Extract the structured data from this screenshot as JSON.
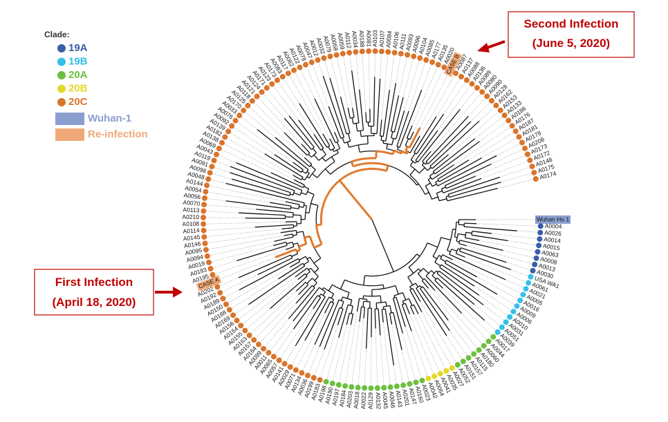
{
  "legend": {
    "title": "Clade:",
    "items": [
      {
        "label": "19A",
        "color": "#3a5da8",
        "shape": "dot"
      },
      {
        "label": "19B",
        "color": "#33c0ea",
        "shape": "dot"
      },
      {
        "label": "20A",
        "color": "#6cbf3f",
        "shape": "dot"
      },
      {
        "label": "20B",
        "color": "#e4d82a",
        "shape": "dot"
      },
      {
        "label": "20C",
        "color": "#d9742b",
        "shape": "dot"
      },
      {
        "label": "Wuhan-1",
        "color": "#8a9ed0",
        "shape": "box"
      },
      {
        "label": "Re-infection",
        "color": "#f0a878",
        "shape": "box"
      }
    ]
  },
  "callouts": [
    {
      "title": "Second Infection",
      "date": "(June 5, 2020)"
    },
    {
      "title": "First Infection",
      "date": "(April 18, 2020)"
    }
  ],
  "leaves": [
    {
      "label": "Wuhan Hu 1",
      "clade": "Wuhan-1"
    },
    {
      "label": "A0004",
      "clade": "19A"
    },
    {
      "label": "A0026",
      "clade": "19A"
    },
    {
      "label": "A0014",
      "clade": "19A"
    },
    {
      "label": "A0015",
      "clade": "19A"
    },
    {
      "label": "A0063",
      "clade": "19A"
    },
    {
      "label": "A0008",
      "clade": "19A"
    },
    {
      "label": "A0013",
      "clade": "19A"
    },
    {
      "label": "A0030",
      "clade": "19A"
    },
    {
      "label": "USA WA1",
      "clade": "19B"
    },
    {
      "label": "A0061",
      "clade": "19B"
    },
    {
      "label": "A0021",
      "clade": "19B"
    },
    {
      "label": "A0005",
      "clade": "19B"
    },
    {
      "label": "A0016",
      "clade": "19B"
    },
    {
      "label": "A0009",
      "clade": "19B"
    },
    {
      "label": "A0006",
      "clade": "19B"
    },
    {
      "label": "A0010",
      "clade": "19B"
    },
    {
      "label": "A0031",
      "clade": "19B"
    },
    {
      "label": "A0051",
      "clade": "19B"
    },
    {
      "label": "A0039",
      "clade": "19B"
    },
    {
      "label": "A0017",
      "clade": "20A"
    },
    {
      "label": "A0044",
      "clade": "20A"
    },
    {
      "label": "A0060",
      "clade": "20A"
    },
    {
      "label": "A0180",
      "clade": "20A"
    },
    {
      "label": "A0115",
      "clade": "20A"
    },
    {
      "label": "A0157",
      "clade": "20A"
    },
    {
      "label": "A0151",
      "clade": "20A"
    },
    {
      "label": "A0052",
      "clade": "20A"
    },
    {
      "label": "A0027",
      "clade": "20B"
    },
    {
      "label": "A0035",
      "clade": "20B"
    },
    {
      "label": "A0041",
      "clade": "20B"
    },
    {
      "label": "A0064",
      "clade": "20B"
    },
    {
      "label": "A0042",
      "clade": "20B"
    },
    {
      "label": "A0023",
      "clade": "20A"
    },
    {
      "label": "A0160",
      "clade": "20A"
    },
    {
      "label": "A0147",
      "clade": "20A"
    },
    {
      "label": "A0201",
      "clade": "20A"
    },
    {
      "label": "A0143",
      "clade": "20A"
    },
    {
      "label": "A0046",
      "clade": "20A"
    },
    {
      "label": "A0045",
      "clade": "20A"
    },
    {
      "label": "A0132",
      "clade": "20A"
    },
    {
      "label": "A0129",
      "clade": "20A"
    },
    {
      "label": "A0022",
      "clade": "20A"
    },
    {
      "label": "A0018",
      "clade": "20A"
    },
    {
      "label": "A0203",
      "clade": "20A"
    },
    {
      "label": "A0184",
      "clade": "20A"
    },
    {
      "label": "A0197",
      "clade": "20A"
    },
    {
      "label": "A0190",
      "clade": "20A"
    },
    {
      "label": "A0198",
      "clade": "20A"
    },
    {
      "label": "A0183",
      "clade": "20C"
    },
    {
      "label": "A0199",
      "clade": "20C"
    },
    {
      "label": "A0036",
      "clade": "20C"
    },
    {
      "label": "A0134",
      "clade": "20C"
    },
    {
      "label": "A0071",
      "clade": "20C"
    },
    {
      "label": "A0029",
      "clade": "20C"
    },
    {
      "label": "A0141",
      "clade": "20C"
    },
    {
      "label": "A0057",
      "clade": "20C"
    },
    {
      "label": "A0065",
      "clade": "20C"
    },
    {
      "label": "A0011",
      "clade": "20C"
    },
    {
      "label": "A0099",
      "clade": "20C"
    },
    {
      "label": "A0164",
      "clade": "20C"
    },
    {
      "label": "A0157",
      "clade": "20C"
    },
    {
      "label": "A0163",
      "clade": "20C"
    },
    {
      "label": "A0155",
      "clade": "20C"
    },
    {
      "label": "A0154",
      "clade": "20C"
    },
    {
      "label": "A0156",
      "clade": "20C"
    },
    {
      "label": "A0169",
      "clade": "20C"
    },
    {
      "label": "A0188",
      "clade": "20C"
    },
    {
      "label": "A0150",
      "clade": "20C"
    },
    {
      "label": "A0189",
      "clade": "20C"
    },
    {
      "label": "A0192",
      "clade": "20C"
    },
    {
      "label": "A0202",
      "clade": "20C"
    },
    {
      "label": "CASE A",
      "clade": "Re-infection"
    },
    {
      "label": "A0195",
      "clade": "20C"
    },
    {
      "label": "A0193",
      "clade": "20C"
    },
    {
      "label": "A0019",
      "clade": "20C"
    },
    {
      "label": "A0094",
      "clade": "20C"
    },
    {
      "label": "A0095",
      "clade": "20C"
    },
    {
      "label": "A0146",
      "clade": "20C"
    },
    {
      "label": "A0145",
      "clade": "20C"
    },
    {
      "label": "A0114",
      "clade": "20C"
    },
    {
      "label": "A0108",
      "clade": "20C"
    },
    {
      "label": "A0210",
      "clade": "20C"
    },
    {
      "label": "A0113",
      "clade": "20C"
    },
    {
      "label": "A0070",
      "clade": "20C"
    },
    {
      "label": "A0056",
      "clade": "20C"
    },
    {
      "label": "A0054",
      "clade": "20C"
    },
    {
      "label": "A0144",
      "clade": "20C"
    },
    {
      "label": "A0048",
      "clade": "20C"
    },
    {
      "label": "A0098",
      "clade": "20C"
    },
    {
      "label": "A0091",
      "clade": "20C"
    },
    {
      "label": "A0119",
      "clade": "20C"
    },
    {
      "label": "A0043",
      "clade": "20C"
    },
    {
      "label": "A0069",
      "clade": "20C"
    },
    {
      "label": "A0138",
      "clade": "20C"
    },
    {
      "label": "A0182",
      "clade": "20C"
    },
    {
      "label": "A0139",
      "clade": "20C"
    },
    {
      "label": "A0092",
      "clade": "20C"
    },
    {
      "label": "A0076",
      "clade": "20C"
    },
    {
      "label": "A0033",
      "clade": "20C"
    },
    {
      "label": "A0170",
      "clade": "20C"
    },
    {
      "label": "A0125",
      "clade": "20C"
    },
    {
      "label": "A0118",
      "clade": "20C"
    },
    {
      "label": "A0121",
      "clade": "20C"
    },
    {
      "label": "A0124",
      "clade": "20C"
    },
    {
      "label": "A0171",
      "clade": "20C"
    },
    {
      "label": "A0123",
      "clade": "20C"
    },
    {
      "label": "A0173",
      "clade": "20C"
    },
    {
      "label": "A0083",
      "clade": "20C"
    },
    {
      "label": "A0117",
      "clade": "20C"
    },
    {
      "label": "A0062",
      "clade": "20C"
    },
    {
      "label": "A0122",
      "clade": "20C"
    },
    {
      "label": "A0078",
      "clade": "20C"
    },
    {
      "label": "A0047",
      "clade": "20C"
    },
    {
      "label": "A0012",
      "clade": "20C"
    },
    {
      "label": "A0032",
      "clade": "20C"
    },
    {
      "label": "A0079",
      "clade": "20C"
    },
    {
      "label": "A0058",
      "clade": "20C"
    },
    {
      "label": "A0059",
      "clade": "20C"
    },
    {
      "label": "A0112",
      "clade": "20C"
    },
    {
      "label": "A0034",
      "clade": "20C"
    },
    {
      "label": "A0188",
      "clade": "20C"
    },
    {
      "label": "A0081",
      "clade": "20C"
    },
    {
      "label": "A0103",
      "clade": "20C"
    },
    {
      "label": "A0107",
      "clade": "20C"
    },
    {
      "label": "A0084",
      "clade": "20C"
    },
    {
      "label": "A0106",
      "clade": "20C"
    },
    {
      "label": "A0111",
      "clade": "20C"
    },
    {
      "label": "A0093",
      "clade": "20C"
    },
    {
      "label": "A0096",
      "clade": "20C"
    },
    {
      "label": "A0104",
      "clade": "20C"
    },
    {
      "label": "A0085",
      "clade": "20C"
    },
    {
      "label": "A0177",
      "clade": "20C"
    },
    {
      "label": "A0135",
      "clade": "20C"
    },
    {
      "label": "A0020",
      "clade": "20C"
    },
    {
      "label": "CASE B",
      "clade": "Re-infection"
    },
    {
      "label": "A0087",
      "clade": "20C"
    },
    {
      "label": "A0137",
      "clade": "20C"
    },
    {
      "label": "A0088",
      "clade": "20C"
    },
    {
      "label": "A0136",
      "clade": "20C"
    },
    {
      "label": "A0089",
      "clade": "20C"
    },
    {
      "label": "A0080",
      "clade": "20C"
    },
    {
      "label": "A0090",
      "clade": "20C"
    },
    {
      "label": "A0128",
      "clade": "20C"
    },
    {
      "label": "A0162",
      "clade": "20C"
    },
    {
      "label": "A0153",
      "clade": "20C"
    },
    {
      "label": "A0133",
      "clade": "20C"
    },
    {
      "label": "A0186",
      "clade": "20C"
    },
    {
      "label": "A0176",
      "clade": "20C"
    },
    {
      "label": "A0187",
      "clade": "20C"
    },
    {
      "label": "A0181",
      "clade": "20C"
    },
    {
      "label": "A0178",
      "clade": "20C"
    },
    {
      "label": "A0208",
      "clade": "20C"
    },
    {
      "label": "A0173",
      "clade": "20C"
    },
    {
      "label": "A0172",
      "clade": "20C"
    },
    {
      "label": "A0148",
      "clade": "20C"
    },
    {
      "label": "A0175",
      "clade": "20C"
    },
    {
      "label": "A0174",
      "clade": "20C"
    }
  ]
}
